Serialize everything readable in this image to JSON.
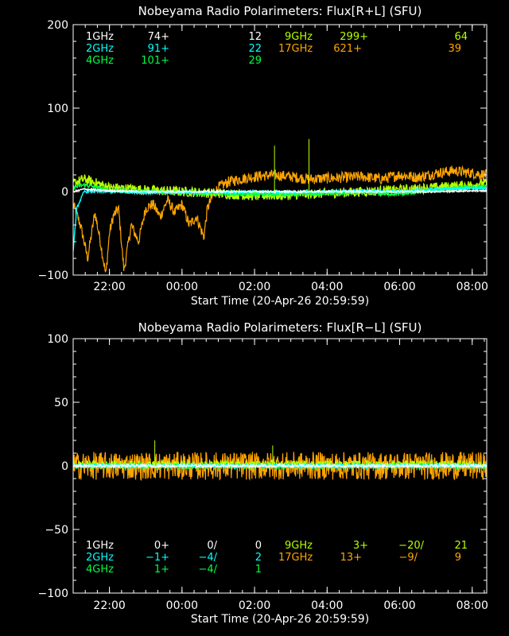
{
  "colors": {
    "f1": "#ffffff",
    "f2": "#00ffff",
    "f4": "#00ff44",
    "f9": "#b8ff00",
    "f17": "#ffa500",
    "axes": "#ffffff"
  },
  "chart_data": [
    {
      "type": "line",
      "title": "Nobeyama Radio Polarimeters: Flux[R+L] (SFU)",
      "xlabel": "Start Time (20-Apr-26 20:59:59)",
      "ylabel": "",
      "ylim": [
        -100,
        200
      ],
      "y_ticks": [
        "200",
        "100",
        "0",
        "−100"
      ],
      "y_tick_values": [
        200,
        100,
        0,
        -100
      ],
      "x_ticks": [
        "22:00",
        "00:00",
        "02:00",
        "04:00",
        "06:00",
        "08:00"
      ],
      "x_tick_values": [
        1,
        3,
        5,
        7,
        9,
        11
      ],
      "xlim_hours_from_start": [
        0,
        11.4
      ],
      "grid": false,
      "legend": [
        {
          "band": "1GHz",
          "v1": "74+",
          "v2": "",
          "v3": "12"
        },
        {
          "band": "2GHz",
          "v1": "91+",
          "v2": "",
          "v3": "22"
        },
        {
          "band": "4GHz",
          "v1": "101+",
          "v2": "",
          "v3": "29"
        },
        {
          "band": "9GHz",
          "v1": "299+",
          "v2": "",
          "v3": "64"
        },
        {
          "band": "17GHz",
          "v1": "621+",
          "v2": "",
          "v3": "39"
        }
      ],
      "series": [
        {
          "name": "17GHz",
          "x": [
            0,
            0.2,
            0.4,
            0.6,
            0.75,
            0.9,
            1.0,
            1.1,
            1.25,
            1.4,
            1.6,
            1.8,
            2.0,
            2.2,
            2.4,
            2.6,
            2.8,
            3.0,
            3.2,
            3.4,
            3.6,
            3.7,
            3.85,
            4.0,
            4.3,
            4.6,
            5.0,
            5.5,
            6.0,
            6.5,
            7.0,
            7.5,
            8.0,
            8.5,
            9.0,
            9.5,
            10.0,
            10.5,
            11.0,
            11.4
          ],
          "values": [
            -15,
            -40,
            -80,
            -25,
            -60,
            -100,
            -50,
            -30,
            -20,
            -95,
            -40,
            -60,
            -20,
            -15,
            -30,
            -10,
            -25,
            -15,
            -40,
            -30,
            -55,
            -20,
            -5,
            5,
            12,
            15,
            18,
            20,
            18,
            15,
            16,
            17,
            18,
            15,
            20,
            17,
            22,
            25,
            22,
            20
          ]
        },
        {
          "name": "9GHz",
          "x": [
            0,
            0.3,
            1,
            2,
            3,
            4,
            5,
            6,
            7,
            8,
            9,
            10,
            11,
            11.4
          ],
          "values": [
            10,
            15,
            5,
            2,
            0,
            -2,
            -5,
            -4,
            -2,
            0,
            2,
            5,
            8,
            10
          ]
        },
        {
          "name": "4GHz",
          "x": [
            0,
            0.3,
            1,
            2,
            3,
            4,
            5,
            6,
            7,
            8,
            9,
            10,
            11,
            11.4
          ],
          "values": [
            5,
            8,
            2,
            0,
            -1,
            -2,
            -3,
            -3,
            -2,
            -1,
            -3,
            2,
            5,
            6
          ]
        },
        {
          "name": "2GHz",
          "x": [
            0,
            0.1,
            0.3,
            1,
            2,
            3,
            4,
            5,
            6,
            7,
            8,
            9,
            10,
            11,
            11.4
          ],
          "values": [
            -70,
            -20,
            0,
            0,
            -1,
            -1,
            -1,
            0,
            -1,
            0,
            1,
            0,
            3,
            4,
            4
          ]
        },
        {
          "name": "1GHz",
          "x": [
            0,
            0.3,
            1,
            2,
            3,
            4,
            5,
            6,
            7,
            8,
            9,
            10,
            11,
            11.4
          ],
          "values": [
            0,
            3,
            1,
            0,
            0,
            0,
            0,
            0,
            0,
            0,
            0,
            0,
            1,
            1
          ]
        }
      ],
      "spikes": [
        {
          "x": 5.55,
          "value": 55
        },
        {
          "x": 6.5,
          "value": 63
        }
      ]
    },
    {
      "type": "line",
      "title": "Nobeyama Radio Polarimeters: Flux[R−L] (SFU)",
      "xlabel": "Start Time (20-Apr-26 20:59:59)",
      "ylabel": "",
      "ylim": [
        -100,
        100
      ],
      "y_ticks": [
        "100",
        "50",
        "0",
        "−50",
        "−100"
      ],
      "y_tick_values": [
        100,
        50,
        0,
        -50,
        -100
      ],
      "x_ticks": [
        "22:00",
        "00:00",
        "02:00",
        "04:00",
        "06:00",
        "08:00"
      ],
      "x_tick_values": [
        1,
        3,
        5,
        7,
        9,
        11
      ],
      "xlim_hours_from_start": [
        0,
        11.4
      ],
      "grid": false,
      "legend": [
        {
          "band": "1GHz",
          "v1": "0+",
          "v2": "0/",
          "v3": "0"
        },
        {
          "band": "2GHz",
          "v1": "−1+",
          "v2": "−4/",
          "v3": "2"
        },
        {
          "band": "4GHz",
          "v1": "1+",
          "v2": "−4/",
          "v3": "1"
        },
        {
          "band": "9GHz",
          "v1": "3+",
          "v2": "−20/",
          "v3": "21"
        },
        {
          "band": "17GHz",
          "v1": "13+",
          "v2": "−9/",
          "v3": "9"
        }
      ],
      "series": [
        {
          "name": "17GHz",
          "x": [
            0,
            1,
            2,
            3,
            4,
            5,
            6,
            7,
            8,
            9,
            10,
            11,
            11.4
          ],
          "values": [
            0,
            0,
            0,
            0,
            0,
            0,
            0,
            0,
            0,
            0,
            0,
            0,
            0
          ]
        },
        {
          "name": "9GHz",
          "x": [
            0,
            1,
            2,
            3,
            4,
            5,
            6,
            7,
            8,
            9,
            10,
            11,
            11.4
          ],
          "values": [
            1,
            1,
            1,
            1,
            1,
            1,
            1,
            1,
            1,
            1,
            1,
            1,
            1
          ]
        },
        {
          "name": "4GHz",
          "x": [
            0,
            1,
            2,
            3,
            4,
            5,
            6,
            7,
            8,
            9,
            10,
            11,
            11.4
          ],
          "values": [
            0,
            0,
            0,
            0,
            0,
            0,
            0,
            0,
            0,
            0,
            0,
            0,
            0
          ]
        },
        {
          "name": "2GHz",
          "x": [
            0,
            1,
            2,
            3,
            4,
            5,
            6,
            7,
            8,
            9,
            10,
            11,
            11.4
          ],
          "values": [
            0,
            0,
            0,
            0,
            0,
            0,
            0,
            0,
            0,
            0,
            0,
            0,
            0
          ]
        },
        {
          "name": "1GHz",
          "x": [
            0,
            1,
            2,
            3,
            4,
            5,
            6,
            7,
            8,
            9,
            10,
            11,
            11.4
          ],
          "values": [
            0,
            0,
            0,
            0,
            0,
            0,
            0,
            0,
            0,
            0,
            0,
            0,
            0
          ]
        }
      ],
      "spikes": [
        {
          "x": 2.25,
          "value": 20
        },
        {
          "x": 5.5,
          "value": 16
        }
      ]
    }
  ]
}
